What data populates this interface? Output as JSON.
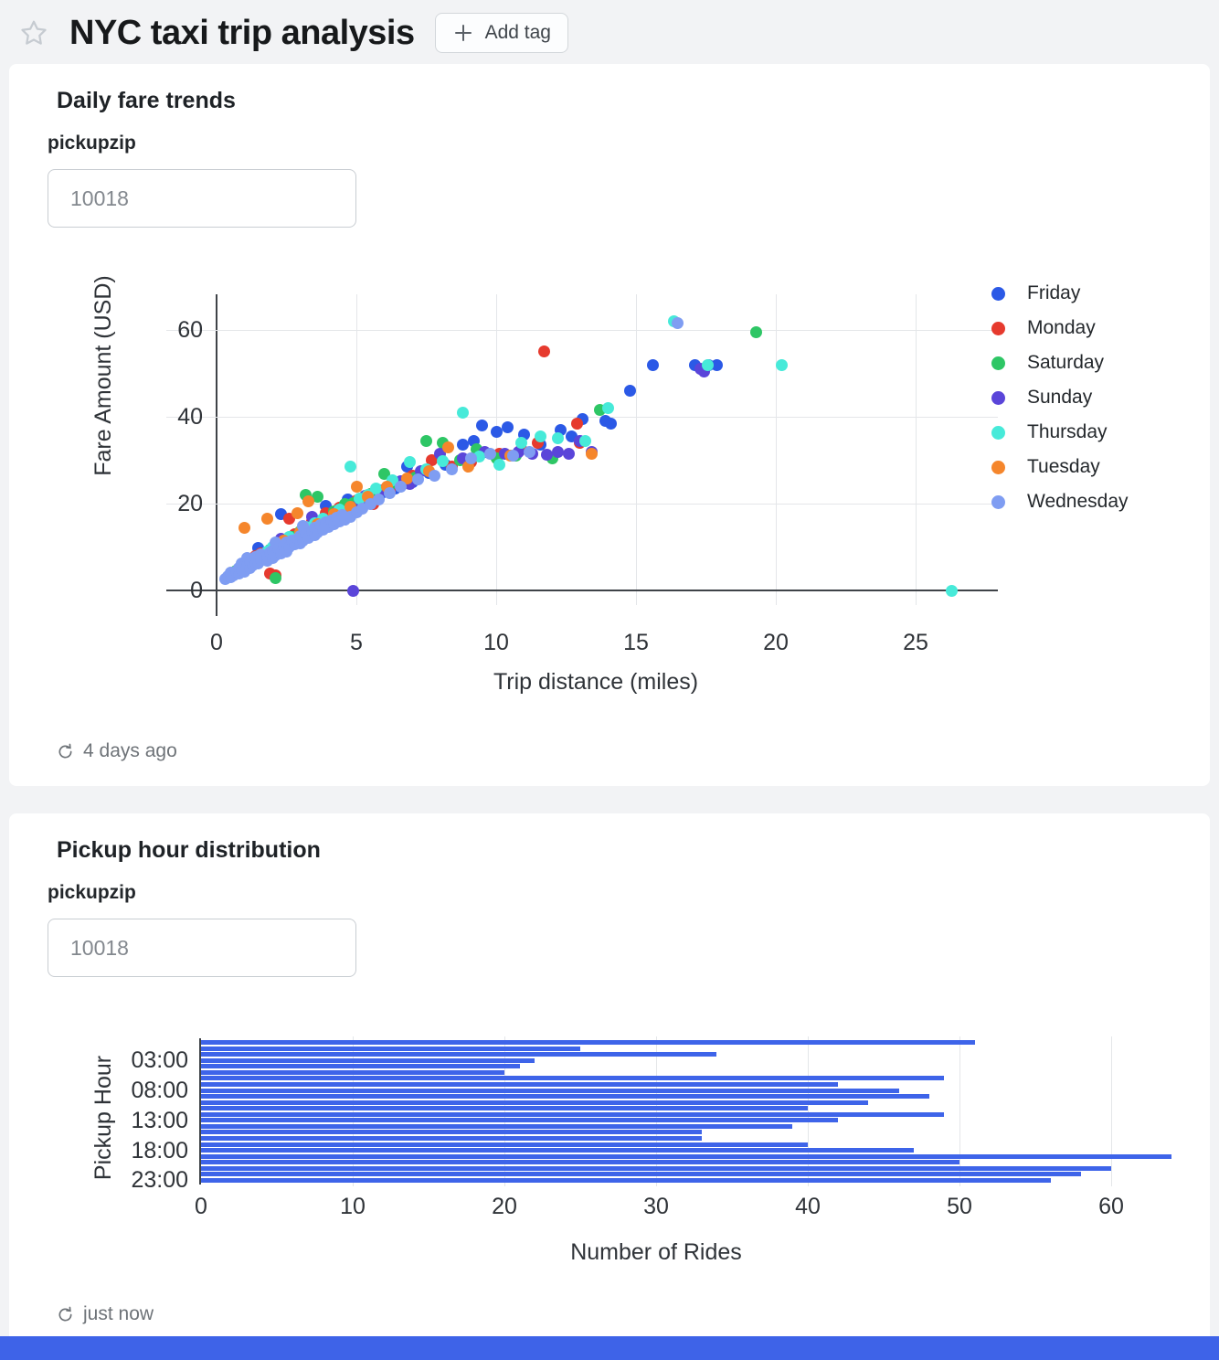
{
  "page": {
    "title": "NYC taxi trip analysis",
    "add_tag_label": "Add tag",
    "background": "#F2F3F5",
    "footer_color": "#3E63E8"
  },
  "card1": {
    "title": "Daily fare trends",
    "param_label": "pickupzip",
    "param_value": "10018",
    "refresh_text": "4 days ago",
    "chart_data": {
      "type": "scatter",
      "xlabel": "Trip distance (miles)",
      "ylabel": "Fare Amount (USD)",
      "xlim": [
        0,
        27.5
      ],
      "ylim": [
        0,
        66
      ],
      "x_ticks": [
        0,
        5,
        10,
        15,
        20,
        25
      ],
      "y_ticks": [
        0,
        20,
        40,
        60
      ],
      "grid": true,
      "legend_position": "right",
      "series": [
        {
          "name": "Friday",
          "color": "#2B59E6",
          "points": [
            [
              0.5,
              3.4
            ],
            [
              0.9,
              5.0
            ],
            [
              1.3,
              6.4
            ],
            [
              1.5,
              9.8
            ],
            [
              1.7,
              8.2
            ],
            [
              2.1,
              9.4
            ],
            [
              2.3,
              17.5
            ],
            [
              2.5,
              11.2
            ],
            [
              2.9,
              12.4
            ],
            [
              3.3,
              14.2
            ],
            [
              3.7,
              15.4
            ],
            [
              3.9,
              19.5
            ],
            [
              4.1,
              17.2
            ],
            [
              4.5,
              18.4
            ],
            [
              4.7,
              21.0
            ],
            [
              5.0,
              20.5
            ],
            [
              5.4,
              21.4
            ],
            [
              5.9,
              22.5
            ],
            [
              6.4,
              23.5
            ],
            [
              6.8,
              28.5
            ],
            [
              7.0,
              25.0
            ],
            [
              7.6,
              27.0
            ],
            [
              8.2,
              29.0
            ],
            [
              8.8,
              33.5
            ],
            [
              9.2,
              34.5
            ],
            [
              9.5,
              38.0
            ],
            [
              10.0,
              36.5
            ],
            [
              10.4,
              37.5
            ],
            [
              11.0,
              36.0
            ],
            [
              11.6,
              33.5
            ],
            [
              12.3,
              37.0
            ],
            [
              12.7,
              35.5
            ],
            [
              13.1,
              39.5
            ],
            [
              13.9,
              39.0
            ],
            [
              14.1,
              38.5
            ],
            [
              14.8,
              46.0
            ],
            [
              15.6,
              52.0
            ],
            [
              17.1,
              52.0
            ],
            [
              17.6,
              52.0
            ],
            [
              17.9,
              52.0
            ]
          ]
        },
        {
          "name": "Monday",
          "color": "#E63A2E",
          "points": [
            [
              0.6,
              4.2
            ],
            [
              1.1,
              6.2
            ],
            [
              1.4,
              7.8
            ],
            [
              1.6,
              8.6
            ],
            [
              1.9,
              4.0
            ],
            [
              2.1,
              3.4
            ],
            [
              2.2,
              10.4
            ],
            [
              2.6,
              16.5
            ],
            [
              2.8,
              13.0
            ],
            [
              3.4,
              15.8
            ],
            [
              3.9,
              17.8
            ],
            [
              4.4,
              19.0
            ],
            [
              5.0,
              20.8
            ],
            [
              5.6,
              20.0
            ],
            [
              6.2,
              22.8
            ],
            [
              7.0,
              26.5
            ],
            [
              7.7,
              30.0
            ],
            [
              8.4,
              28.5
            ],
            [
              9.1,
              29.5
            ],
            [
              10.1,
              31.5
            ],
            [
              10.9,
              32.5
            ],
            [
              11.5,
              34.0
            ],
            [
              11.7,
              55.0
            ],
            [
              12.9,
              38.5
            ],
            [
              13.0,
              34.0
            ]
          ]
        },
        {
          "name": "Saturday",
          "color": "#2EC665",
          "points": [
            [
              0.7,
              4.6
            ],
            [
              1.3,
              7.0
            ],
            [
              1.9,
              9.4
            ],
            [
              2.1,
              2.8
            ],
            [
              2.4,
              11.6
            ],
            [
              2.7,
              12.4
            ],
            [
              3.0,
              13.6
            ],
            [
              3.2,
              22.0
            ],
            [
              3.6,
              21.5
            ],
            [
              4.2,
              18.2
            ],
            [
              4.6,
              19.8
            ],
            [
              4.9,
              20.2
            ],
            [
              5.5,
              22.2
            ],
            [
              6.0,
              26.8
            ],
            [
              6.3,
              24.8
            ],
            [
              7.1,
              26.0
            ],
            [
              7.5,
              34.5
            ],
            [
              8.1,
              34.0
            ],
            [
              8.7,
              30.0
            ],
            [
              9.3,
              32.5
            ],
            [
              10.0,
              30.5
            ],
            [
              10.7,
              31.0
            ],
            [
              12.0,
              30.5
            ],
            [
              13.7,
              41.5
            ],
            [
              19.3,
              59.5
            ]
          ]
        },
        {
          "name": "Sunday",
          "color": "#5A45D9",
          "points": [
            [
              0.5,
              3.8
            ],
            [
              1.0,
              5.8
            ],
            [
              1.5,
              7.8
            ],
            [
              2.0,
              9.8
            ],
            [
              2.3,
              11.8
            ],
            [
              2.6,
              12.2
            ],
            [
              3.1,
              14.0
            ],
            [
              3.4,
              17.0
            ],
            [
              3.7,
              16.0
            ],
            [
              4.3,
              18.0
            ],
            [
              4.9,
              0.0
            ],
            [
              5.1,
              20.2
            ],
            [
              5.3,
              21.8
            ],
            [
              5.9,
              23.0
            ],
            [
              6.6,
              25.2
            ],
            [
              6.9,
              24.5
            ],
            [
              7.3,
              27.5
            ],
            [
              8.0,
              31.5
            ],
            [
              8.8,
              30.5
            ],
            [
              9.6,
              32.0
            ],
            [
              10.3,
              31.5
            ],
            [
              10.8,
              31.8
            ],
            [
              11.3,
              31.5
            ],
            [
              11.8,
              31.2
            ],
            [
              12.2,
              31.8
            ],
            [
              12.6,
              31.5
            ],
            [
              13.0,
              34.5
            ],
            [
              13.4,
              31.8
            ],
            [
              17.3,
              51.0
            ],
            [
              17.45,
              50.5
            ]
          ]
        },
        {
          "name": "Thursday",
          "color": "#47EAD9",
          "points": [
            [
              0.4,
              3.0
            ],
            [
              0.9,
              5.4
            ],
            [
              1.5,
              8.0
            ],
            [
              1.8,
              9.0
            ],
            [
              2.0,
              10.0
            ],
            [
              2.6,
              12.4
            ],
            [
              3.2,
              14.6
            ],
            [
              3.5,
              15.5
            ],
            [
              3.8,
              16.6
            ],
            [
              4.4,
              18.6
            ],
            [
              4.8,
              28.5
            ],
            [
              5.1,
              21.2
            ],
            [
              5.4,
              22.0
            ],
            [
              5.7,
              23.4
            ],
            [
              6.3,
              25.4
            ],
            [
              6.9,
              29.5
            ],
            [
              7.5,
              28.0
            ],
            [
              8.1,
              29.8
            ],
            [
              8.8,
              41.0
            ],
            [
              9.4,
              30.8
            ],
            [
              10.1,
              29.0
            ],
            [
              10.9,
              34.0
            ],
            [
              11.6,
              35.5
            ],
            [
              12.2,
              35.0
            ],
            [
              13.2,
              34.5
            ],
            [
              14.0,
              42.0
            ],
            [
              16.35,
              62.0
            ],
            [
              17.55,
              52.0
            ],
            [
              20.2,
              52.0
            ],
            [
              26.3,
              0.0
            ]
          ]
        },
        {
          "name": "Tuesday",
          "color": "#F5862C",
          "points": [
            [
              0.6,
              4.0
            ],
            [
              1.0,
              14.5
            ],
            [
              1.2,
              6.6
            ],
            [
              1.8,
              16.5
            ],
            [
              2.4,
              11.4
            ],
            [
              2.9,
              17.8
            ],
            [
              3.0,
              13.4
            ],
            [
              3.3,
              20.5
            ],
            [
              3.6,
              15.2
            ],
            [
              4.2,
              17.6
            ],
            [
              4.8,
              19.2
            ],
            [
              5.0,
              24.0
            ],
            [
              5.4,
              21.6
            ],
            [
              6.1,
              23.8
            ],
            [
              6.8,
              25.8
            ],
            [
              7.6,
              27.5
            ],
            [
              8.3,
              33.0
            ],
            [
              9.0,
              28.5
            ],
            [
              10.5,
              31.0
            ],
            [
              13.4,
              31.5
            ]
          ]
        },
        {
          "name": "Wednesday",
          "color": "#7F9DF2",
          "points": [
            [
              0.3,
              2.6
            ],
            [
              0.4,
              3.2
            ],
            [
              0.5,
              3.0
            ],
            [
              0.5,
              4.1
            ],
            [
              0.6,
              3.5
            ],
            [
              0.7,
              4.4
            ],
            [
              0.8,
              4.0
            ],
            [
              0.8,
              5.2
            ],
            [
              0.9,
              4.8
            ],
            [
              0.9,
              6.3
            ],
            [
              1.0,
              5.5
            ],
            [
              1.0,
              4.3
            ],
            [
              1.1,
              6.0
            ],
            [
              1.1,
              7.4
            ],
            [
              1.2,
              5.2
            ],
            [
              1.2,
              6.7
            ],
            [
              1.3,
              5.8
            ],
            [
              1.4,
              6.5
            ],
            [
              1.4,
              7.6
            ],
            [
              1.5,
              6.2
            ],
            [
              1.6,
              7.0
            ],
            [
              1.6,
              8.4
            ],
            [
              1.7,
              7.5
            ],
            [
              1.8,
              6.8
            ],
            [
              1.8,
              8.0
            ],
            [
              1.9,
              8.8
            ],
            [
              2.0,
              7.4
            ],
            [
              2.0,
              9.2
            ],
            [
              2.1,
              8.2
            ],
            [
              2.1,
              11.0
            ],
            [
              2.2,
              9.6
            ],
            [
              2.3,
              8.6
            ],
            [
              2.4,
              10.2
            ],
            [
              2.5,
              9.0
            ],
            [
              2.5,
              11.0
            ],
            [
              2.6,
              10.0
            ],
            [
              2.7,
              11.4
            ],
            [
              2.8,
              10.6
            ],
            [
              2.9,
              12.0
            ],
            [
              3.0,
              10.8
            ],
            [
              3.0,
              12.6
            ],
            [
              3.1,
              11.5
            ],
            [
              3.1,
              14.8
            ],
            [
              3.2,
              13.0
            ],
            [
              3.3,
              12.2
            ],
            [
              3.4,
              13.6
            ],
            [
              3.5,
              12.8
            ],
            [
              3.5,
              14.4
            ],
            [
              3.6,
              13.4
            ],
            [
              3.7,
              15.0
            ],
            [
              3.8,
              14.0
            ],
            [
              3.9,
              15.6
            ],
            [
              4.0,
              14.6
            ],
            [
              4.1,
              16.2
            ],
            [
              4.2,
              15.2
            ],
            [
              4.3,
              16.8
            ],
            [
              4.4,
              15.8
            ],
            [
              4.5,
              17.4
            ],
            [
              4.6,
              16.4
            ],
            [
              4.8,
              17.0
            ],
            [
              5.0,
              18.0
            ],
            [
              5.2,
              18.8
            ],
            [
              5.5,
              20.0
            ],
            [
              5.8,
              21.0
            ],
            [
              6.2,
              22.4
            ],
            [
              6.6,
              24.0
            ],
            [
              7.2,
              25.5
            ],
            [
              7.8,
              26.5
            ],
            [
              8.4,
              28.0
            ],
            [
              9.1,
              30.5
            ],
            [
              9.8,
              31.5
            ],
            [
              10.6,
              31.0
            ],
            [
              11.2,
              32.0
            ],
            [
              16.5,
              61.5
            ]
          ]
        }
      ]
    }
  },
  "card2": {
    "title": "Pickup hour distribution",
    "param_label": "pickupzip",
    "param_value": "10018",
    "refresh_text": "just now",
    "chart_data": {
      "type": "bar",
      "orientation": "horizontal",
      "xlabel": "Number of Rides",
      "ylabel": "Pickup Hour",
      "bar_color": "#3E64E9",
      "xlim": [
        0,
        64
      ],
      "x_ticks": [
        0,
        10,
        20,
        30,
        40,
        50,
        60
      ],
      "y_tick_labels": [
        "03:00",
        "08:00",
        "13:00",
        "18:00",
        "23:00"
      ],
      "categories": [
        "00:00",
        "01:00",
        "02:00",
        "03:00",
        "04:00",
        "05:00",
        "06:00",
        "07:00",
        "08:00",
        "09:00",
        "10:00",
        "11:00",
        "12:00",
        "13:00",
        "14:00",
        "15:00",
        "16:00",
        "17:00",
        "18:00",
        "19:00",
        "20:00",
        "21:00",
        "22:00",
        "23:00"
      ],
      "values": [
        51,
        25,
        34,
        22,
        21,
        20,
        49,
        42,
        46,
        48,
        44,
        40,
        49,
        42,
        39,
        33,
        33,
        40,
        47,
        64,
        50,
        60,
        58,
        56
      ]
    }
  }
}
